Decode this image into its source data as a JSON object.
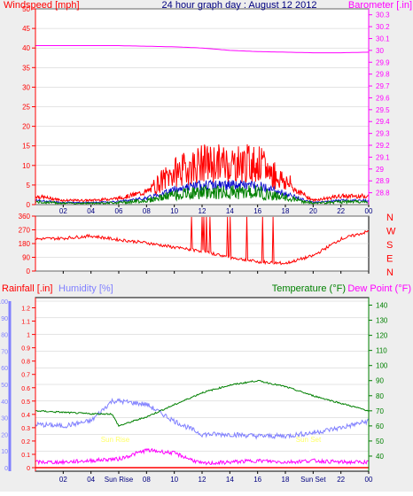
{
  "colors": {
    "bg_outer": "#eeeeee",
    "plot_bg": "#ffffff",
    "axis": "#000000",
    "grid": "#c8c8c8",
    "wind": "#ff0000",
    "gust_blue": "#0000cc",
    "wind_green": "#008000",
    "barometer": "#ff00ff",
    "direction": "#ff0000",
    "rainfall": "#ff0000",
    "humidity": "#8080ff",
    "temperature": "#008000",
    "dewpoint": "#ff00ff",
    "title": "#000080",
    "sun_label": "#ffff66"
  },
  "header": {
    "wind_label": "Windspeed [mph]",
    "title": "24 hour graph day : August 12 2012",
    "baro_label": "Barometer [.in]"
  },
  "x_ticks": [
    "02",
    "04",
    "06",
    "08",
    "10",
    "12",
    "14",
    "16",
    "18",
    "20",
    "22",
    "00"
  ],
  "x_ticks_bottom": [
    "02",
    "04",
    "Sun Rise",
    "08",
    "10",
    "12",
    "14",
    "16",
    "18",
    "Sun Set",
    "22",
    "00"
  ],
  "panel1": {
    "left_ticks": [
      "50",
      "45",
      "40",
      "35",
      "30",
      "25",
      "20",
      "15",
      "10",
      "5",
      "0"
    ],
    "right_ticks": [
      "30.3",
      "30.2",
      "30.1",
      "30",
      "29.9",
      "29.8",
      "29.7",
      "29.6",
      "29.5",
      "29.4",
      "29.3",
      "29.2",
      "29.1",
      "29",
      "28.9",
      "28.8"
    ]
  },
  "panel2": {
    "left_ticks": [
      "360",
      "270",
      "180",
      "90",
      "0"
    ],
    "right_labels": [
      "N",
      "W",
      "S",
      "E",
      "N"
    ]
  },
  "panel3": {
    "rain_label": "Rainfall [.in]",
    "hum_label": "Humidity [%]",
    "temp_label": "Temperature (°F)",
    "dew_label": "Dew Point (°F)",
    "hum_ticks": [
      "100",
      "90",
      "80",
      "70",
      "60",
      "50",
      "40",
      "30",
      "20",
      "10",
      "0"
    ],
    "rain_ticks": [
      "1.2",
      "1.1",
      "1",
      "0.9",
      "0.8",
      "0.7",
      "0.6",
      "0.5",
      "0.4",
      "0.3",
      "0.2",
      "0.1",
      "0"
    ],
    "temp_ticks": [
      "140",
      "130",
      "120",
      "110",
      "100",
      "90",
      "80",
      "70",
      "60",
      "50",
      "40"
    ],
    "sun_rise": "Sun Rise",
    "sun_set": "Sun Set"
  },
  "chart_data": [
    {
      "type": "line",
      "title": "24 hour graph day : August 12 2012",
      "xlabel": "",
      "x": [
        "00",
        "02",
        "04",
        "06",
        "08",
        "10",
        "12",
        "14",
        "16",
        "18",
        "20",
        "22",
        "00"
      ],
      "ylabel_left": "Windspeed [mph]",
      "ylim_left": [
        0,
        50
      ],
      "ylabel_right": "Barometer [.in]",
      "ylim_right": [
        28.7,
        30.35
      ],
      "series": [
        {
          "name": "Windspeed [mph]",
          "axis": "left",
          "values": [
            2,
            1,
            1,
            1.5,
            3,
            7,
            9,
            9,
            9,
            5,
            1,
            2,
            2
          ]
        },
        {
          "name": "Barometer [.in]",
          "axis": "right",
          "values": [
            30.04,
            30.04,
            30.04,
            30.04,
            30.035,
            30.03,
            30.02,
            30.0,
            29.99,
            29.985,
            29.98,
            29.98,
            29.985
          ]
        }
      ]
    },
    {
      "type": "scatter",
      "xlabel": "",
      "x": [
        "00",
        "02",
        "04",
        "06",
        "08",
        "10",
        "12",
        "14",
        "16",
        "18",
        "20",
        "22",
        "00"
      ],
      "ylim": [
        0,
        360
      ],
      "series": [
        {
          "name": "Direction",
          "values": [
            210,
            215,
            230,
            205,
            185,
            155,
            130,
            90,
            60,
            50,
            100,
            210,
            260
          ]
        }
      ]
    },
    {
      "type": "line",
      "xlabel": "",
      "x": [
        "00",
        "02",
        "04",
        "05.5",
        "06",
        "08",
        "10",
        "12",
        "14",
        "16",
        "18",
        "20",
        "22",
        "00"
      ],
      "ylabel_left": "Humidity [%]",
      "ylim_left": [
        0,
        100
      ],
      "ylabel_right": "Temperature (°F)",
      "ylim_right": [
        30,
        145
      ],
      "series": [
        {
          "name": "Humidity [%]",
          "axis": "left",
          "values": [
            26,
            25,
            28,
            40,
            40,
            38,
            28,
            20,
            20,
            19,
            19,
            21,
            24,
            28
          ]
        },
        {
          "name": "Temperature (°F)",
          "axis": "right",
          "values": [
            70,
            69,
            68,
            68,
            60,
            66,
            74,
            82,
            87,
            90,
            86,
            80,
            75,
            70
          ]
        },
        {
          "name": "Dew Point (°F)",
          "axis": "right",
          "values": [
            36,
            36,
            37,
            38,
            38,
            44,
            42,
            35,
            36,
            37,
            36,
            37,
            36,
            36
          ]
        },
        {
          "name": "Rainfall [.in]",
          "axis": "rain",
          "values": [
            0,
            0,
            0,
            0,
            0,
            0,
            0,
            0,
            0,
            0,
            0,
            0,
            0,
            0
          ]
        }
      ]
    }
  ]
}
